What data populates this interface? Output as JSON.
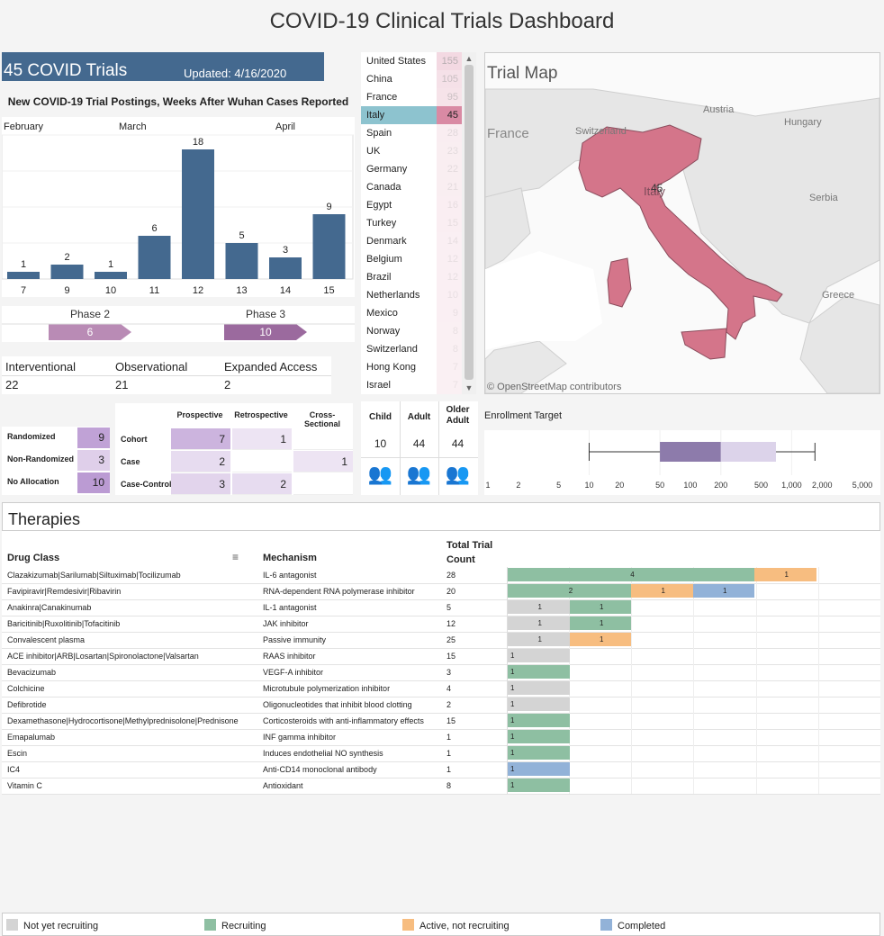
{
  "page_title": "COVID-19 Clinical Trials Dashboard",
  "header": {
    "trial_count": "45 COVID Trials",
    "updated": "Updated: 4/16/2020"
  },
  "weekly": {
    "title": "New COVID-19 Trial Postings, Weeks After Wuhan Cases Reported",
    "months": [
      "February",
      "March",
      "April"
    ],
    "weeks": [
      "7",
      "9",
      "10",
      "11",
      "12",
      "13",
      "14",
      "15"
    ],
    "counts": [
      1,
      2,
      1,
      6,
      18,
      5,
      3,
      9
    ],
    "bar_color": "#44698f"
  },
  "phases": [
    {
      "label": "Phase 2",
      "count": 6,
      "color": "#b98bb5"
    },
    {
      "label": "Phase 3",
      "count": 10,
      "color": "#9b6a9e"
    }
  ],
  "study_types": [
    {
      "label": "Interventional",
      "value": "22"
    },
    {
      "label": "Observational",
      "value": "21"
    },
    {
      "label": "Expanded Access",
      "value": "2"
    }
  ],
  "countries": [
    {
      "name": "United States",
      "count": "155"
    },
    {
      "name": "China",
      "count": "105"
    },
    {
      "name": "France",
      "count": "95"
    },
    {
      "name": "Italy",
      "count": "45"
    },
    {
      "name": "Spain",
      "count": "28"
    },
    {
      "name": "UK",
      "count": "23"
    },
    {
      "name": "Germany",
      "count": "22"
    },
    {
      "name": "Canada",
      "count": "21"
    },
    {
      "name": "Egypt",
      "count": "16"
    },
    {
      "name": "Turkey",
      "count": "15"
    },
    {
      "name": "Denmark",
      "count": "14"
    },
    {
      "name": "Belgium",
      "count": "12"
    },
    {
      "name": "Brazil",
      "count": "12"
    },
    {
      "name": "Netherlands",
      "count": "10"
    },
    {
      "name": "Mexico",
      "count": "9"
    },
    {
      "name": "Norway",
      "count": "8"
    },
    {
      "name": "Switzerland",
      "count": "8"
    },
    {
      "name": "Hong Kong",
      "count": "7"
    },
    {
      "name": "Israel",
      "count": "7"
    }
  ],
  "selected_country": "Italy",
  "map": {
    "title": "Trial Map",
    "labels": [
      "France",
      "Switzerland",
      "Austria",
      "Hungary",
      "Serbia",
      "Greece",
      "Italy"
    ],
    "value": "45",
    "attribution": "© OpenStreetMap contributors",
    "highlight_color": "#d4758a"
  },
  "allocation": [
    {
      "label": "Randomized",
      "value": "9"
    },
    {
      "label": "Non-Randomized",
      "value": "3"
    },
    {
      "label": "No Allocation",
      "value": "10"
    }
  ],
  "design": {
    "columns": [
      "Prospective",
      "Retrospective",
      "Cross-Sectional"
    ],
    "rows": [
      {
        "label": "Cohort",
        "values": [
          "7",
          "1",
          ""
        ]
      },
      {
        "label": "Case",
        "values": [
          "2",
          "",
          "1"
        ]
      },
      {
        "label": "Case-Control",
        "values": [
          "3",
          "2",
          ""
        ]
      }
    ]
  },
  "age_groups": [
    {
      "label": "Child",
      "value": "10"
    },
    {
      "label": "Adult",
      "value": "44"
    },
    {
      "label": "Older Adult",
      "value": "44"
    }
  ],
  "enrollment": {
    "label": "Enrollment Target",
    "ticks": [
      "1",
      "2",
      "5",
      "10",
      "20",
      "50",
      "100",
      "200",
      "500",
      "1,000",
      "2,000",
      "5,000"
    ],
    "whisker_low": 10,
    "q1": 50,
    "median": 200,
    "q3": 700,
    "whisker_high": 1700
  },
  "therapies": {
    "title": "Therapies",
    "columns": {
      "drug_class": "Drug Class",
      "mechanism": "Mechanism",
      "total": "Total Trial Count"
    },
    "rows": [
      {
        "drug": "Clazakizumab|Sarilumab|Siltuximab|Tocilizumab",
        "mechanism": "IL-6 antagonist",
        "total": "28",
        "segments": [
          {
            "status": "Recruiting",
            "n": 4
          },
          {
            "status": "Active, not recruiting",
            "n": 1
          }
        ]
      },
      {
        "drug": "Favipiravir|Remdesivir|Ribavirin",
        "mechanism": "RNA-dependent RNA polymerase inhibitor",
        "total": "20",
        "segments": [
          {
            "status": "Recruiting",
            "n": 2
          },
          {
            "status": "Active, not recruiting",
            "n": 1
          },
          {
            "status": "Completed",
            "n": 1
          }
        ]
      },
      {
        "drug": "Anakinra|Canakinumab",
        "mechanism": "IL-1 antagonist",
        "total": "5",
        "segments": [
          {
            "status": "Not yet recruiting",
            "n": 1
          },
          {
            "status": "Recruiting",
            "n": 1
          }
        ]
      },
      {
        "drug": "Baricitinib|Ruxolitinib|Tofacitinib",
        "mechanism": "JAK inhibitor",
        "total": "12",
        "segments": [
          {
            "status": "Not yet recruiting",
            "n": 1
          },
          {
            "status": "Recruiting",
            "n": 1
          }
        ]
      },
      {
        "drug": "Convalescent plasma",
        "mechanism": "Passive immunity",
        "total": "25",
        "segments": [
          {
            "status": "Not yet recruiting",
            "n": 1
          },
          {
            "status": "Active, not recruiting",
            "n": 1
          }
        ]
      },
      {
        "drug": "ACE inhibitor|ARB|Losartan|Spironolactone|Valsartan",
        "mechanism": "RAAS inhibitor",
        "total": "15",
        "segments": [
          {
            "status": "Not yet recruiting",
            "n": 1
          }
        ]
      },
      {
        "drug": "Bevacizumab",
        "mechanism": "VEGF-A inhibitor",
        "total": "3",
        "segments": [
          {
            "status": "Recruiting",
            "n": 1
          }
        ]
      },
      {
        "drug": "Colchicine",
        "mechanism": "Microtubule polymerization inhibitor",
        "total": "4",
        "segments": [
          {
            "status": "Not yet recruiting",
            "n": 1
          }
        ]
      },
      {
        "drug": "Defibrotide",
        "mechanism": "Oligonucleotides that inhibit blood clotting",
        "total": "2",
        "segments": [
          {
            "status": "Not yet recruiting",
            "n": 1
          }
        ]
      },
      {
        "drug": "Dexamethasone|Hydrocortisone|Methylprednisolone|Prednisone",
        "mechanism": "Corticosteroids with anti-inflammatory effects",
        "total": "15",
        "segments": [
          {
            "status": "Recruiting",
            "n": 1
          }
        ]
      },
      {
        "drug": "Emapalumab",
        "mechanism": "INF gamma inhibitor",
        "total": "1",
        "segments": [
          {
            "status": "Recruiting",
            "n": 1
          }
        ]
      },
      {
        "drug": "Escin",
        "mechanism": "Induces endothelial NO synthesis",
        "total": "1",
        "segments": [
          {
            "status": "Recruiting",
            "n": 1
          }
        ]
      },
      {
        "drug": "IC4",
        "mechanism": "Anti-CD14 monoclonal antibody",
        "total": "1",
        "segments": [
          {
            "status": "Completed",
            "n": 1
          }
        ]
      },
      {
        "drug": "Vitamin C",
        "mechanism": "Antioxidant",
        "total": "8",
        "segments": [
          {
            "status": "Recruiting",
            "n": 1
          }
        ]
      }
    ]
  },
  "status_legend": [
    {
      "label": "Not yet recruiting",
      "color": "#d4d4d4"
    },
    {
      "label": "Recruiting",
      "color": "#8ebfa2"
    },
    {
      "label": "Active, not recruiting",
      "color": "#f7bd80"
    },
    {
      "label": "Completed",
      "color": "#92b2d8"
    }
  ]
}
